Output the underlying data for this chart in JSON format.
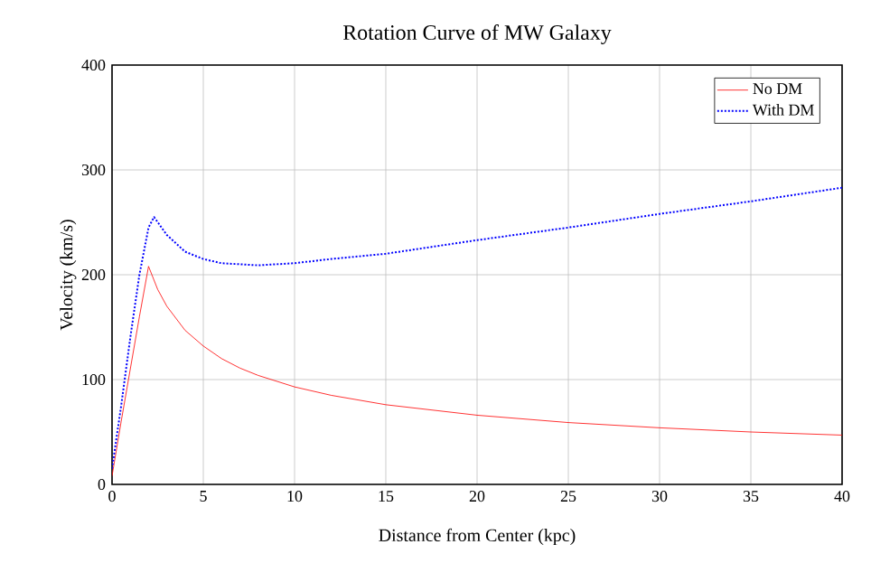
{
  "chart_data": {
    "type": "line",
    "title": "Rotation Curve of MW Galaxy",
    "xlabel": "Distance from Center (kpc)",
    "ylabel": "Velocity (km/s)",
    "xlim": [
      0,
      40
    ],
    "ylim": [
      0,
      400
    ],
    "xticks": [
      0,
      5,
      10,
      15,
      20,
      25,
      30,
      35,
      40
    ],
    "yticks": [
      0,
      100,
      200,
      300,
      400
    ],
    "grid": true,
    "legend": "top right",
    "series": [
      {
        "name": "No DM",
        "color": "#ff0000",
        "line_style": "solid",
        "x": [
          0,
          0.5,
          1,
          1.5,
          2,
          2.5,
          3,
          4,
          5,
          6,
          7,
          8,
          10,
          12,
          15,
          20,
          25,
          30,
          35,
          40
        ],
        "values": [
          8,
          60,
          110,
          160,
          208,
          186,
          170,
          147,
          132,
          120,
          111,
          104,
          93,
          85,
          76,
          66,
          59,
          54,
          50,
          47
        ]
      },
      {
        "name": "With DM",
        "color": "#0000ff",
        "line_style": "dotted",
        "x": [
          0,
          0.5,
          1,
          1.5,
          2,
          2.3,
          3,
          4,
          5,
          6,
          8,
          10,
          12,
          15,
          20,
          25,
          30,
          35,
          40
        ],
        "values": [
          15,
          75,
          140,
          200,
          245,
          255,
          238,
          222,
          215,
          211,
          209,
          211,
          215,
          220,
          233,
          245,
          258,
          270,
          283
        ]
      }
    ]
  }
}
